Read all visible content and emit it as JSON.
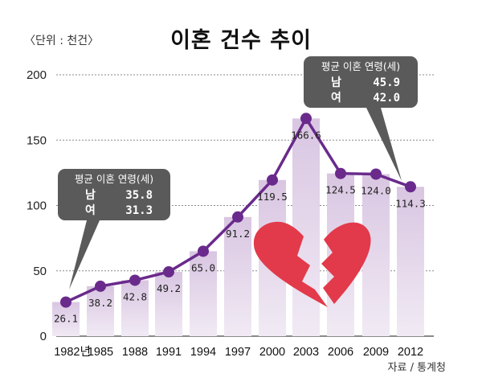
{
  "unit_label": "〈단위 : 천건〉",
  "title": "이혼 건수 추이",
  "source": "자료 / 통계청",
  "colors": {
    "line": "#6a2a8c",
    "bar": "#e6d9ec",
    "callout": "#5a5a5a",
    "heart": "#e23a4a",
    "grid": "#888888"
  },
  "icons": [
    "broken-heart-icon"
  ],
  "chart_data": {
    "type": "bar",
    "categories": [
      "1982년",
      "1985",
      "1988",
      "1991",
      "1994",
      "1997",
      "2000",
      "2003",
      "2006",
      "2009",
      "2012"
    ],
    "values": [
      26.1,
      38.2,
      42.8,
      49.2,
      65.0,
      91.2,
      119.5,
      166.6,
      124.5,
      124.0,
      114.3
    ],
    "value_labels": [
      "26.1",
      "38.2",
      "42.8",
      "49.2",
      "65.0",
      "91.2",
      "119.5",
      "166.6",
      "124.5",
      "124.0",
      "114.3"
    ],
    "y_ticks": [
      "0",
      "50",
      "100",
      "150",
      "200"
    ],
    "ylim": [
      0,
      200
    ],
    "grid": true,
    "overlay_line": true,
    "callouts": [
      {
        "heading": "평균 이혼 연령(세)",
        "rows": [
          {
            "label": "남",
            "value": "35.8"
          },
          {
            "label": "여",
            "value": "31.3"
          }
        ]
      },
      {
        "heading": "평균 이혼 연령(세)",
        "rows": [
          {
            "label": "남",
            "value": "45.9"
          },
          {
            "label": "여",
            "value": "42.0"
          }
        ]
      }
    ]
  }
}
